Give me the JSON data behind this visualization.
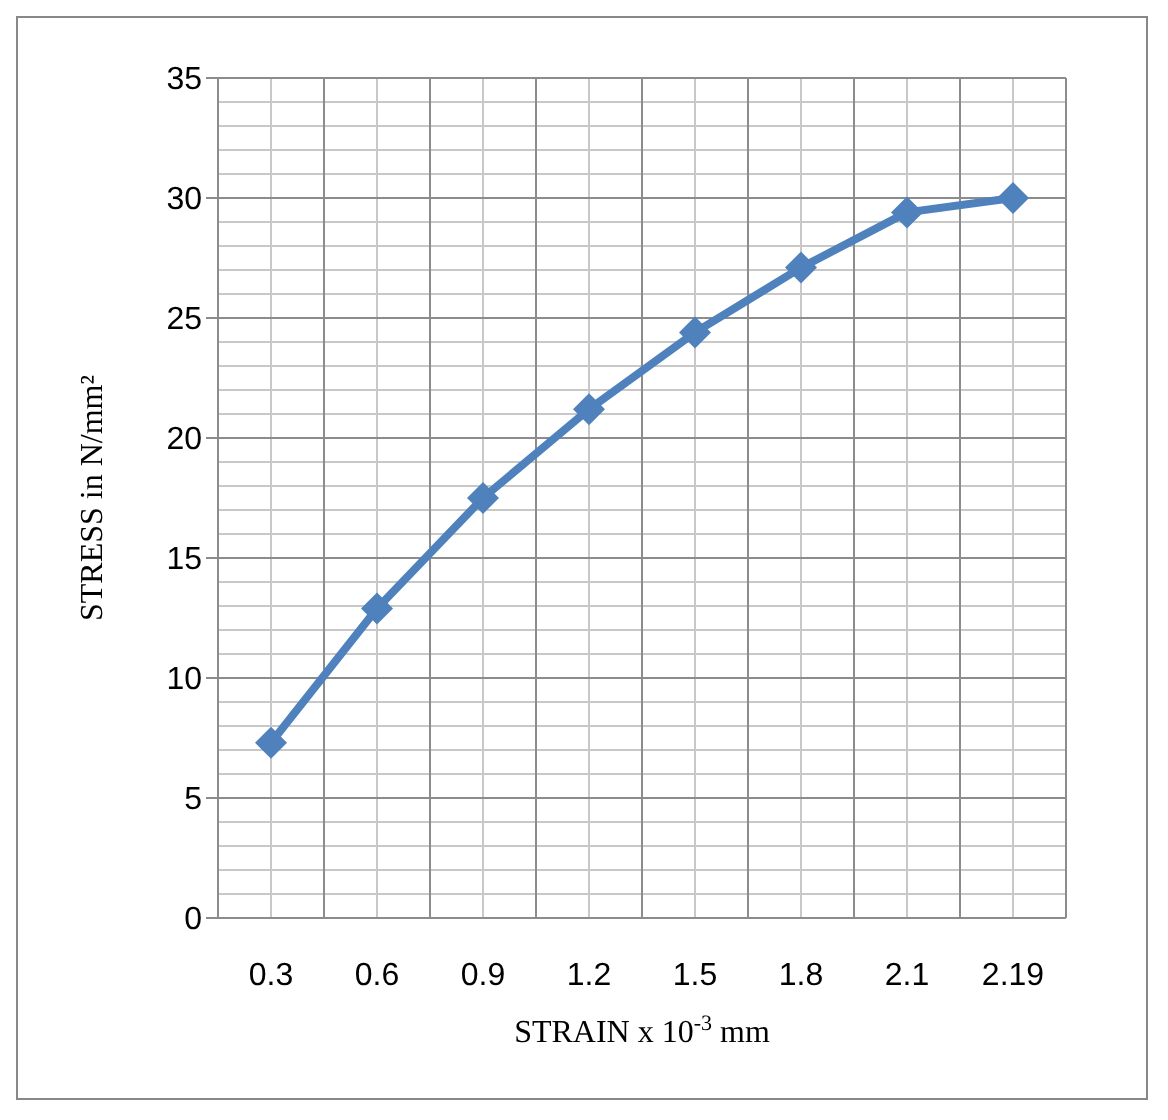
{
  "chart_data": {
    "type": "line",
    "xlabel": "STRAIN x 10$^{-3}$ mm",
    "ylabel": "STRESS in N/mm²",
    "categories": [
      "0.3",
      "0.6",
      "0.9",
      "1.2",
      "1.5",
      "1.8",
      "2.1",
      "2.19"
    ],
    "series": [
      {
        "color": "#4f81bd",
        "values": [
          7.3,
          12.9,
          17.5,
          21.2,
          24.4,
          27.1,
          29.4,
          30.0
        ]
      }
    ],
    "ylim": [
      0,
      35
    ],
    "yticks": [
      0,
      5,
      10,
      15,
      20,
      25,
      30,
      35
    ],
    "grid": true,
    "marker": "diamond",
    "line_style": "solid"
  }
}
